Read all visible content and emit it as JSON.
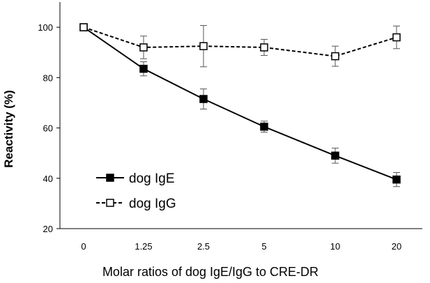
{
  "chart_data": {
    "type": "line",
    "categories": [
      "0",
      "1.25",
      "2.5",
      "5",
      "10",
      "20"
    ],
    "xlabel": "Molar ratios of dog IgE/IgG to CRE-DR",
    "ylabel": "Reactivity (%)",
    "ylim": [
      20,
      110
    ],
    "yticks": [
      20,
      40,
      60,
      80,
      100
    ],
    "grid": false,
    "legend_position": "bottom-left",
    "series": [
      {
        "name": "dog IgE",
        "values": [
          100,
          83.5,
          71.5,
          60.5,
          49,
          39.5
        ],
        "errors": [
          0,
          2.8,
          4,
          2.2,
          3,
          2.8
        ],
        "marker": "filled-square",
        "line": "solid",
        "color": "#000000"
      },
      {
        "name": "dog IgG",
        "values": [
          100,
          92,
          92.5,
          92,
          88.5,
          96
        ],
        "errors": [
          0,
          4.5,
          8.2,
          3.2,
          4,
          4.5
        ],
        "marker": "open-square",
        "line": "dashed",
        "color": "#000000"
      }
    ]
  }
}
